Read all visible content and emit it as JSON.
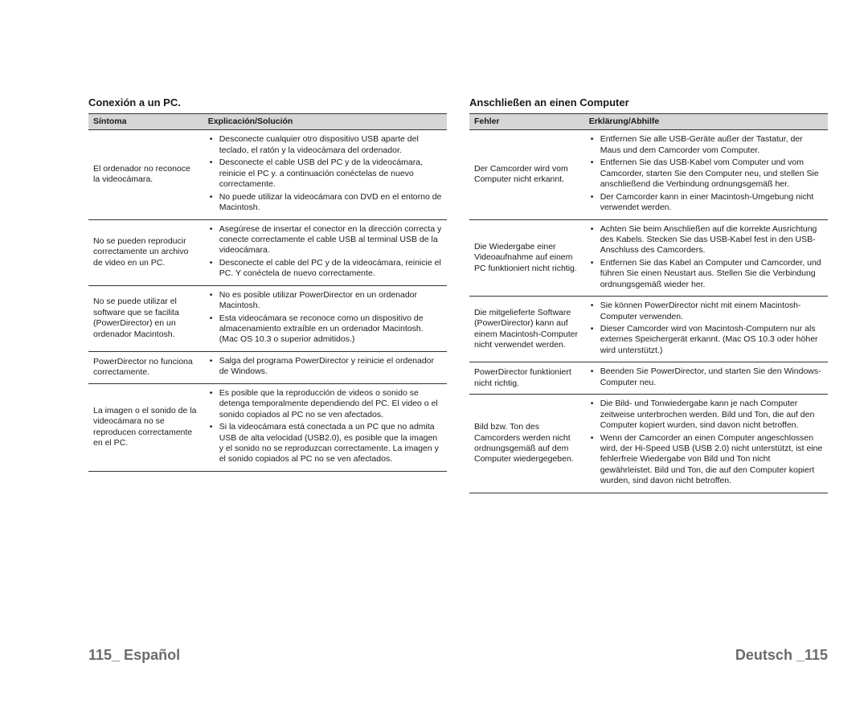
{
  "left": {
    "title": "Conexión a un PC.",
    "headers": [
      "Síntoma",
      "Explicación/Solución"
    ],
    "rows": [
      {
        "symptom": "El ordenador no reconoce la videocámara.",
        "bullets": [
          "Desconecte cualquier otro dispositivo USB aparte del teclado, el ratón y la videocámara del ordenador.",
          "Desconecte el cable USB del PC y de la videocámara, reinicie el PC y. a continuación conéctelas de nuevo correctamente.",
          "No puede utilizar la videocámara con DVD en el entorno de Macintosh."
        ]
      },
      {
        "symptom": "No se pueden reproducir correctamente un archivo de video en un PC.",
        "bullets": [
          "Asegúrese de insertar el conector en la dirección correcta y conecte correctamente el cable USB al terminal USB de la videocámara.",
          "Desconecte el cable del PC y de la videocámara, reinicie el PC. Y conéctela de nuevo correctamente."
        ]
      },
      {
        "symptom": "No se puede utilizar el software que se facilita (PowerDirector) en un ordenador Macintosh.",
        "bullets": [
          "No es posible utilizar PowerDirector en un ordenador Macintosh.",
          "Esta videocámara se reconoce como un dispositivo de almacenamiento extraíble en un ordenador Macintosh. (Mac OS 10.3 o superior admitidos.)"
        ]
      },
      {
        "symptom": "PowerDirector no funciona correctamente.",
        "bullets": [
          "Salga del programa PowerDirector y reinicie el ordenador de Windows."
        ]
      },
      {
        "symptom": "La imagen o el sonido de la videocámara no se reproducen correctamente en el PC.",
        "bullets": [
          "Es posible que la reproducción de videos o sonido se detenga temporalmente dependiendo del PC. El video o el sonido copiados al PC no se ven afectados.",
          "Si la videocámara está conectada a un PC que no admita USB de alta velocidad (USB2.0), es posible que la imagen y el sonido no se reproduzcan correctamente. La imagen y el sonido copiados al PC no se ven afectados."
        ]
      }
    ]
  },
  "right": {
    "title": "Anschließen an einen Computer",
    "headers": [
      "Fehler",
      "Erklärung/Abhilfe"
    ],
    "rows": [
      {
        "symptom": "Der Camcorder wird vom Computer nicht erkannt.",
        "bullets": [
          "Entfernen Sie alle USB-Geräte außer der Tastatur, der Maus und dem Camcorder vom Computer.",
          "Entfernen Sie das USB-Kabel vom Computer und vom Camcorder, starten Sie den Computer neu, und stellen Sie anschließend die Verbindung ordnungsgemäß her.",
          "Der Camcorder kann in einer Macintosh-Umgebung nicht verwendet werden."
        ]
      },
      {
        "symptom": "Die Wiedergabe einer Videoaufnahme auf einem PC funktioniert nicht richtig.",
        "bullets": [
          "Achten Sie beim Anschließen auf die korrekte Ausrichtung des Kabels. Stecken Sie das USB-Kabel fest in den USB-Anschluss des Camcorders.",
          "Entfernen Sie das Kabel an Computer und Camcorder, und führen Sie einen Neustart aus. Stellen Sie die Verbindung ordnungsgemäß wieder her."
        ]
      },
      {
        "symptom": "Die mitgelieferte Software (PowerDirector) kann auf einem Macintosh-Computer nicht verwendet werden.",
        "bullets": [
          "Sie können PowerDirector nicht mit einem Macintosh-Computer verwenden.",
          "Dieser Camcorder wird von Macintosh-Computern nur als externes Speichergerät erkannt. (Mac OS 10.3 oder höher wird unterstützt.)"
        ]
      },
      {
        "symptom": "PowerDirector funktioniert nicht richtig.",
        "bullets": [
          "Beenden Sie PowerDirector, und starten Sie den Windows-Computer neu."
        ]
      },
      {
        "symptom": "Bild bzw. Ton des Camcorders werden nicht ordnungsgemäß auf dem Computer wiedergegeben.",
        "bullets": [
          "Die Bild- und Tonwiedergabe kann je nach Computer zeitweise unterbrochen werden. Bild und Ton, die auf den Computer kopiert wurden, sind davon nicht betroffen.",
          "Wenn der Camcorder an einen Computer angeschlossen wird, der Hi-Speed USB (USB 2.0) nicht unterstützt, ist eine fehlerfreie Wiedergabe von Bild und Ton nicht gewährleistet. Bild und Ton, die auf den Computer kopiert wurden, sind davon nicht betroffen."
        ]
      }
    ]
  },
  "footer": {
    "left_page": "115",
    "left_lang": "_ Español",
    "right_lang": "Deutsch _",
    "right_page": "115"
  }
}
